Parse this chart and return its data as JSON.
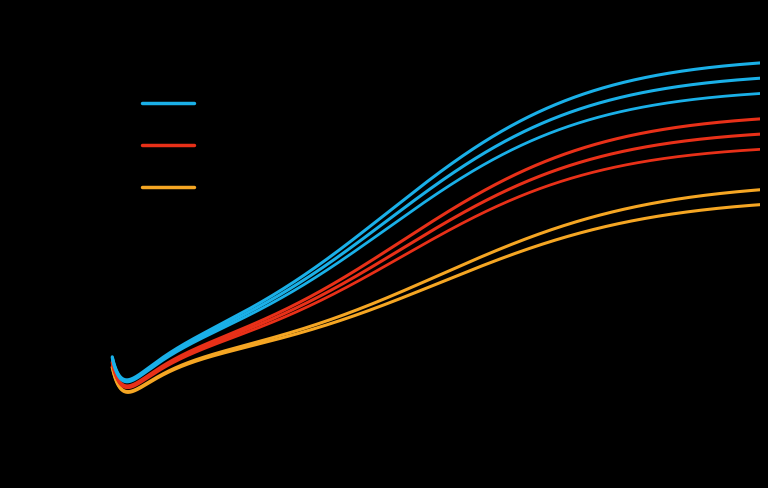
{
  "background_color": "#000000",
  "curves": [
    {
      "color": "#1ab0e8",
      "group": "blue",
      "final_val": 1.0,
      "lw": 2.2
    },
    {
      "color": "#1ab0e8",
      "group": "blue",
      "final_val": 0.95,
      "lw": 2.2
    },
    {
      "color": "#1ab0e8",
      "group": "blue",
      "final_val": 0.9,
      "lw": 2.0
    },
    {
      "color": "#e83018",
      "group": "red",
      "final_val": 0.82,
      "lw": 2.2
    },
    {
      "color": "#e83018",
      "group": "red",
      "final_val": 0.77,
      "lw": 2.2
    },
    {
      "color": "#e83018",
      "group": "red",
      "final_val": 0.72,
      "lw": 2.0
    },
    {
      "color": "#f5a623",
      "group": "orange",
      "final_val": 0.6,
      "lw": 2.2
    },
    {
      "color": "#f5a623",
      "group": "orange",
      "final_val": 0.55,
      "lw": 2.2
    }
  ],
  "legend": [
    {
      "color": "#1ab0e8"
    },
    {
      "color": "#e83018"
    },
    {
      "color": "#f5a623"
    }
  ],
  "xlim": [
    0.0,
    1.0
  ],
  "ylim": [
    -0.35,
    1.15
  ]
}
